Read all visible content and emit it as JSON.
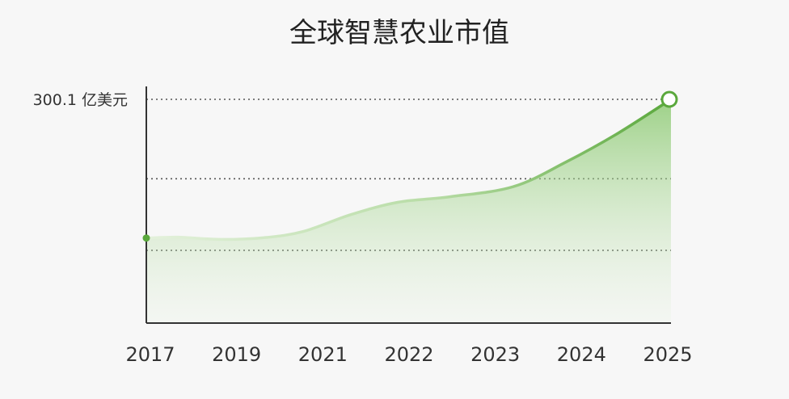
{
  "chart_data": {
    "type": "area",
    "title": "全球智慧农业市值",
    "x": [
      "2017",
      "2019",
      "2021",
      "2022",
      "2023",
      "2024",
      "2025"
    ],
    "series": [
      {
        "values": [
          null,
          null,
          null,
          null,
          null,
          null,
          300.1
        ]
      }
    ],
    "y_max_label": "300.1 亿美元",
    "y_max_value": 300.1,
    "ylim": [
      0,
      300.1
    ],
    "grid": "dotted-horizontal",
    "legend": "none",
    "colors": {
      "line": "#5aa83c",
      "fill": "#8fcf73",
      "marker": "#5aa83c",
      "end_marker_fill": "#ffffff",
      "grid": "#555555",
      "axis": "#333333"
    }
  }
}
